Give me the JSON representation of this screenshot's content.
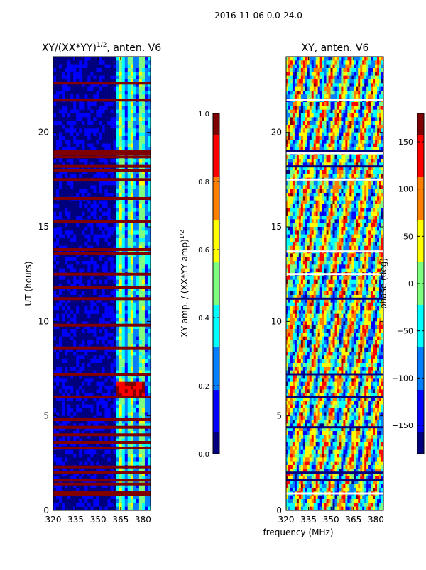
{
  "figure_title": "2016-11-06 0.0-24.0",
  "colors": {
    "jet": [
      "#00007f",
      "#0000ff",
      "#007fff",
      "#00ffff",
      "#7fff7f",
      "#ffff00",
      "#ff7f00",
      "#ff0000",
      "#7f0000"
    ],
    "flag": "#800000",
    "frame": "#000000"
  },
  "chart_data": [
    {
      "type": "heatmap",
      "title_prefix": "XY/(XX*YY)",
      "title_superscript": "1/2",
      "title_suffix": ", anten. V6",
      "xlabel": "",
      "ylabel": "UT (hours)",
      "xlim": [
        320,
        385
      ],
      "ylim": [
        0,
        24
      ],
      "xticks": [
        320,
        335,
        350,
        365,
        380
      ],
      "yticks": [
        0,
        5,
        10,
        15,
        20
      ],
      "colorbar": {
        "label_prefix": "XY amp. / (XX*YY amp)",
        "label_superscript": "1/2",
        "range": [
          0.0,
          1.0
        ],
        "ticks": [
          "0.0",
          "0.2",
          "0.4",
          "0.6",
          "0.8",
          "1.0"
        ]
      },
      "flagged_hours": [
        0.85,
        0.9,
        0.95,
        1.4,
        1.6,
        2.0,
        2.3,
        3.3,
        3.6,
        4.0,
        4.4,
        4.8,
        6.0,
        7.2,
        8.6,
        9.8,
        11.2,
        11.8,
        12.5,
        13.6,
        13.8,
        15.3,
        16.5,
        17.5,
        18.0,
        18.2,
        18.7,
        18.9,
        19.0,
        21.7,
        22.6
      ],
      "high_band_start_mhz": 362,
      "hotspot": {
        "x_range": [
          362,
          382
        ],
        "y_range": [
          6.0,
          6.8
        ]
      }
    },
    {
      "type": "heatmap",
      "title_prefix": "XY, anten. V6",
      "title_superscript": "",
      "title_suffix": "",
      "xlabel": "frequency (MHz)",
      "ylabel": "",
      "xlim": [
        320,
        385
      ],
      "ylim": [
        0,
        24
      ],
      "xticks": [
        320,
        335,
        350,
        365,
        380
      ],
      "yticks": [
        0,
        5,
        10,
        15,
        20
      ],
      "colorbar": {
        "label_prefix": "phase (deg)",
        "label_superscript": "",
        "range": [
          -180,
          180
        ],
        "ticks": [
          "−150",
          "−100",
          "−50",
          "0",
          "50",
          "100",
          "150"
        ],
        "tick_values": [
          -150,
          -100,
          -50,
          0,
          50,
          100,
          150
        ]
      },
      "flagged_hours": [
        0.9,
        1.6,
        2.0,
        4.4,
        6.0,
        7.2,
        11.2,
        12.5,
        13.7,
        17.5,
        18.2,
        18.9,
        19.0,
        21.7
      ]
    }
  ]
}
